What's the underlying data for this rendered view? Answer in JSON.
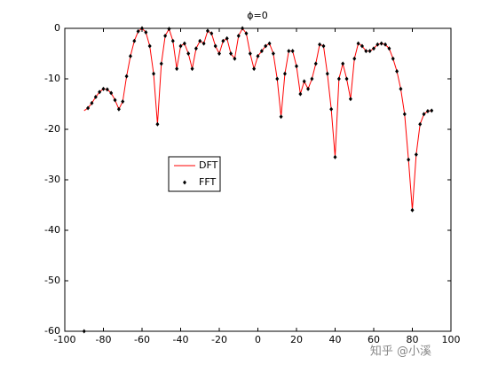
{
  "chart_data": {
    "type": "line",
    "title": "ϕ=0",
    "x": [
      -90,
      -88,
      -86,
      -84,
      -82,
      -80,
      -78,
      -76,
      -74,
      -72,
      -70,
      -68,
      -66,
      -64,
      -62,
      -60,
      -58,
      -56,
      -54,
      -52,
      -50,
      -48,
      -46,
      -44,
      -42,
      -40,
      -38,
      -36,
      -34,
      -32,
      -30,
      -28,
      -26,
      -24,
      -22,
      -20,
      -18,
      -16,
      -14,
      -12,
      -10,
      -8,
      -6,
      -4,
      -2,
      0,
      2,
      4,
      6,
      8,
      10,
      12,
      14,
      16,
      18,
      20,
      22,
      24,
      26,
      28,
      30,
      32,
      34,
      36,
      38,
      40,
      42,
      44,
      46,
      48,
      50,
      52,
      54,
      56,
      58,
      60,
      62,
      64,
      66,
      68,
      70,
      72,
      74,
      76,
      78,
      80,
      82,
      84,
      86,
      88,
      90
    ],
    "series": [
      {
        "name": "DFT",
        "color": "#ff0000",
        "style": "line",
        "values": [
          -16.3,
          -15.8,
          -14.8,
          -13.6,
          -12.6,
          -12.0,
          -12.1,
          -12.8,
          -14.2,
          -16.0,
          -14.5,
          -9.5,
          -5.5,
          -2.5,
          -0.6,
          0,
          -0.8,
          -3.5,
          -9,
          -19,
          -7,
          -1.5,
          -0.1,
          -2.5,
          -8.0,
          -3.5,
          -3.0,
          -5.0,
          -8.0,
          -4.0,
          -2.5,
          -3.0,
          -0.5,
          -1.0,
          -3.5,
          -5.0,
          -2.5,
          -2.0,
          -5.0,
          -6.0,
          -1.5,
          0,
          -1.0,
          -5.0,
          -8.0,
          -5.5,
          -4.5,
          -3.5,
          -3.0,
          -5.0,
          -10,
          -17.5,
          -9,
          -4.5,
          -4.5,
          -7.5,
          -13,
          -10.5,
          -12,
          -10,
          -7,
          -3.2,
          -3.5,
          -9,
          -16,
          -25.5,
          -10,
          -7,
          -10,
          -14,
          -6,
          -3,
          -3.5,
          -4.5,
          -4.5,
          -4,
          -3.2,
          -3,
          -3.2,
          -4,
          -6,
          -8.5,
          -12,
          -17,
          -26,
          -36,
          -25,
          -19,
          -17,
          -16.4,
          -16.3
        ]
      },
      {
        "name": "FFT",
        "color": "#000000",
        "style": "markers",
        "values": [
          -60,
          -15.8,
          -14.8,
          -13.6,
          -12.6,
          -12.0,
          -12.1,
          -12.8,
          -14.2,
          -16.0,
          -14.5,
          -9.5,
          -5.5,
          -2.5,
          -0.6,
          0,
          -0.8,
          -3.5,
          -9,
          -19,
          -7,
          -1.5,
          -0.1,
          -2.5,
          -8.0,
          -3.5,
          -3.0,
          -5.0,
          -8.0,
          -4.0,
          -2.5,
          -3.0,
          -0.5,
          -1.0,
          -3.5,
          -5.0,
          -2.5,
          -2.0,
          -5.0,
          -6.0,
          -1.5,
          0,
          -1.0,
          -5.0,
          -8.0,
          -5.5,
          -4.5,
          -3.5,
          -3.0,
          -5.0,
          -10,
          -17.5,
          -9,
          -4.5,
          -4.5,
          -7.5,
          -13,
          -10.5,
          -12,
          -10,
          -7,
          -3.2,
          -3.5,
          -9,
          -16,
          -25.5,
          -10,
          -7,
          -10,
          -14,
          -6,
          -3,
          -3.5,
          -4.5,
          -4.5,
          -4,
          -3.2,
          -3,
          -3.2,
          -4,
          -6,
          -8.5,
          -12,
          -17,
          -26,
          -36,
          -25,
          -19,
          -17,
          -16.4,
          -16.3
        ]
      }
    ],
    "xlim": [
      -100,
      100
    ],
    "xticks": [
      -100,
      -80,
      -60,
      -40,
      -20,
      0,
      20,
      40,
      60,
      80,
      100
    ],
    "ylim": [
      -60,
      0
    ],
    "yticks": [
      -60,
      -50,
      -40,
      -30,
      -20,
      -10,
      0
    ],
    "grid": false,
    "legend": "inside-left"
  },
  "watermark": "知乎 @小溪"
}
